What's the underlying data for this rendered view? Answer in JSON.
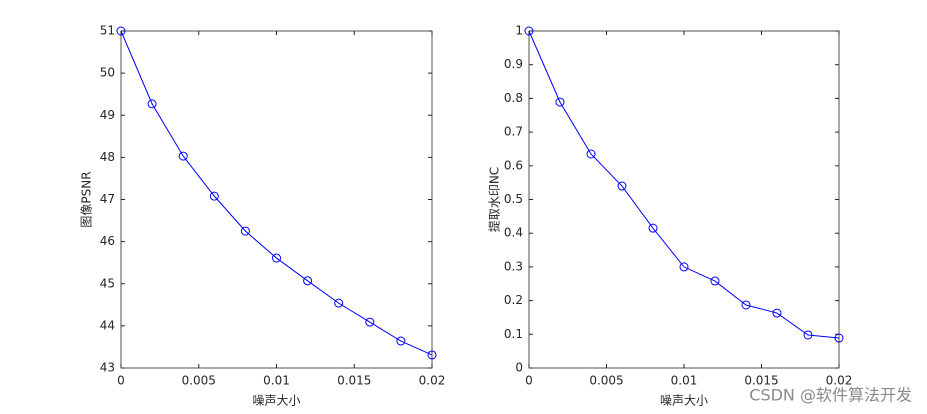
{
  "chart_data": [
    {
      "type": "line",
      "ylabel": "图像PSNR",
      "xlabel": "噪声大小",
      "x": [
        0,
        0.002,
        0.004,
        0.006,
        0.008,
        0.01,
        0.012,
        0.014,
        0.016,
        0.018,
        0.02
      ],
      "values": [
        51,
        49.27,
        48.03,
        47.08,
        46.25,
        45.61,
        45.07,
        44.54,
        44.09,
        43.64,
        43.31
      ],
      "color": "#0000ff",
      "marker": "circle",
      "xlim": [
        0,
        0.02
      ],
      "xticks": [
        0,
        0.005,
        0.01,
        0.015,
        0.02
      ],
      "ylim": [
        43,
        51
      ],
      "yticks": [
        43,
        44,
        45,
        46,
        47,
        48,
        49,
        50,
        51
      ],
      "grid": false
    },
    {
      "type": "line",
      "ylabel": "提取水印NC",
      "xlabel": "噪声大小",
      "x": [
        0,
        0.002,
        0.004,
        0.006,
        0.008,
        0.01,
        0.012,
        0.014,
        0.016,
        0.018,
        0.02
      ],
      "values": [
        1,
        0.789,
        0.635,
        0.54,
        0.415,
        0.3,
        0.258,
        0.187,
        0.163,
        0.098,
        0.089
      ],
      "color": "#0000ff",
      "marker": "circle",
      "xlim": [
        0,
        0.02
      ],
      "xticks": [
        0,
        0.005,
        0.01,
        0.015,
        0.02
      ],
      "ylim": [
        0,
        1
      ],
      "yticks": [
        0,
        0.1,
        0.2,
        0.3,
        0.4,
        0.5,
        0.6,
        0.7,
        0.8,
        0.9,
        1
      ],
      "grid": false
    }
  ],
  "watermark": "CSDN @软件算法开发"
}
